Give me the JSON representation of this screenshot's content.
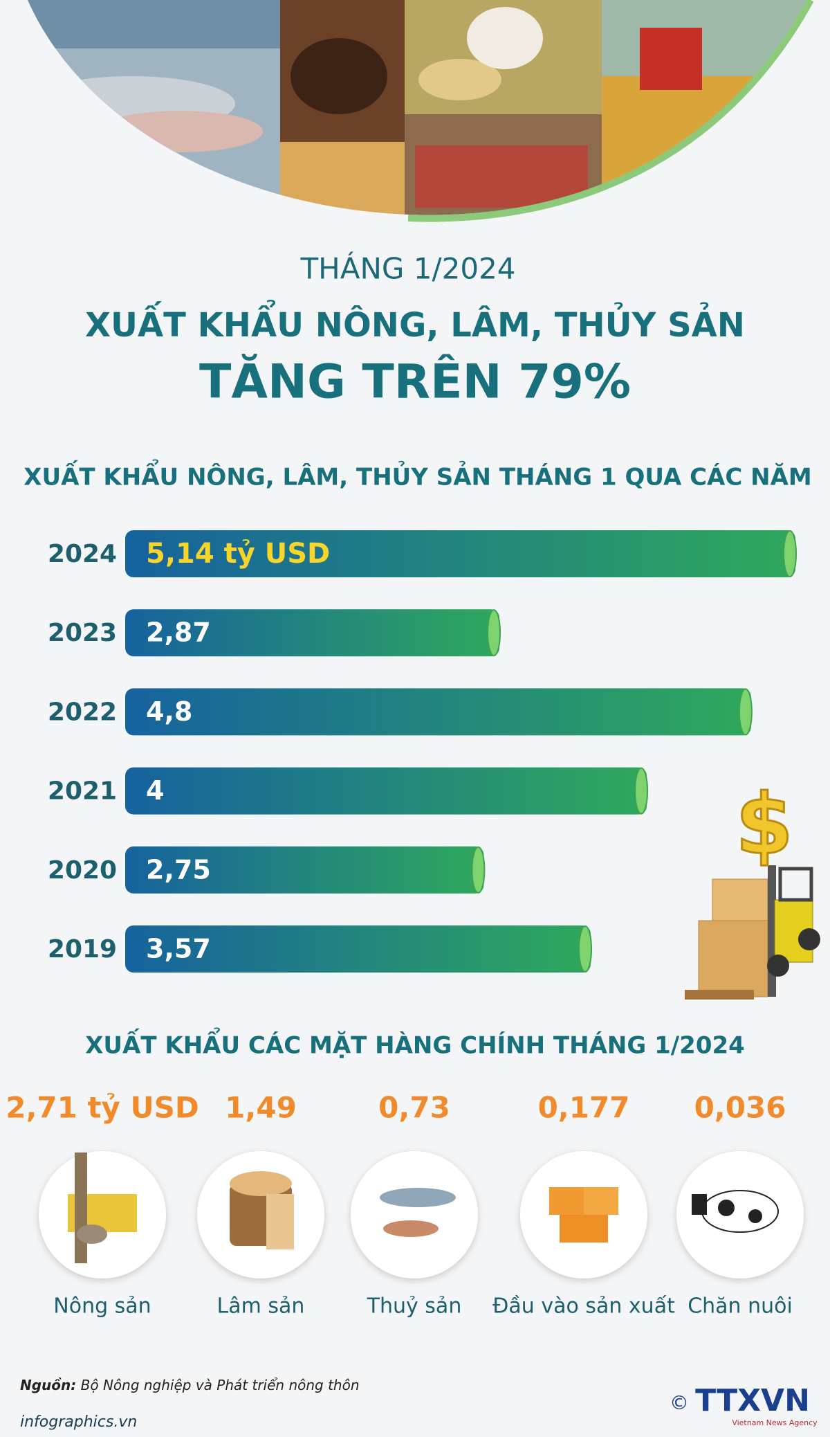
{
  "header": {
    "subtitle": "THÁNG 1/2024",
    "title_line1": "XUẤT KHẨU NÔNG, LÂM, THỦY SẢN",
    "title_line2": "TĂNG TRÊN 79%"
  },
  "chart_data": {
    "type": "bar",
    "orientation": "horizontal",
    "title": "XUẤT KHẨU NÔNG, LÂM, THỦY SẢN THÁNG 1 QUA CÁC NĂM",
    "categories": [
      "2024",
      "2023",
      "2022",
      "2021",
      "2020",
      "2019"
    ],
    "values": [
      5.14,
      2.87,
      4.8,
      4,
      2.75,
      3.57
    ],
    "value_labels": [
      "5,14 tỷ USD",
      "2,87",
      "4,8",
      "4",
      "2,75",
      "3,57"
    ],
    "colors": [
      "#16629e",
      "#2fa85c"
    ],
    "highlight_label_color": "#f7d52a"
  },
  "products": {
    "title": "XUẤT KHẨU CÁC MẶT HÀNG CHÍNH THÁNG 1/2024",
    "items": [
      {
        "value": "2,71 tỷ USD",
        "name": "Nông sản"
      },
      {
        "value": "1,49",
        "name": "Lâm sản"
      },
      {
        "value": "0,73",
        "name": "Thuỷ sản"
      },
      {
        "value": "0,177",
        "name": "Đầu vào sản xuất"
      },
      {
        "value": "0,036",
        "name": "Chăn nuôi"
      }
    ]
  },
  "footer": {
    "source_label": "Nguồn:",
    "source": "Bộ Nông nghiệp và Phát triển nông thôn",
    "site": "infographics.vn",
    "agency": "TTXVN",
    "agency_sub": "Vietnam News Agency",
    "copyright": "©"
  }
}
